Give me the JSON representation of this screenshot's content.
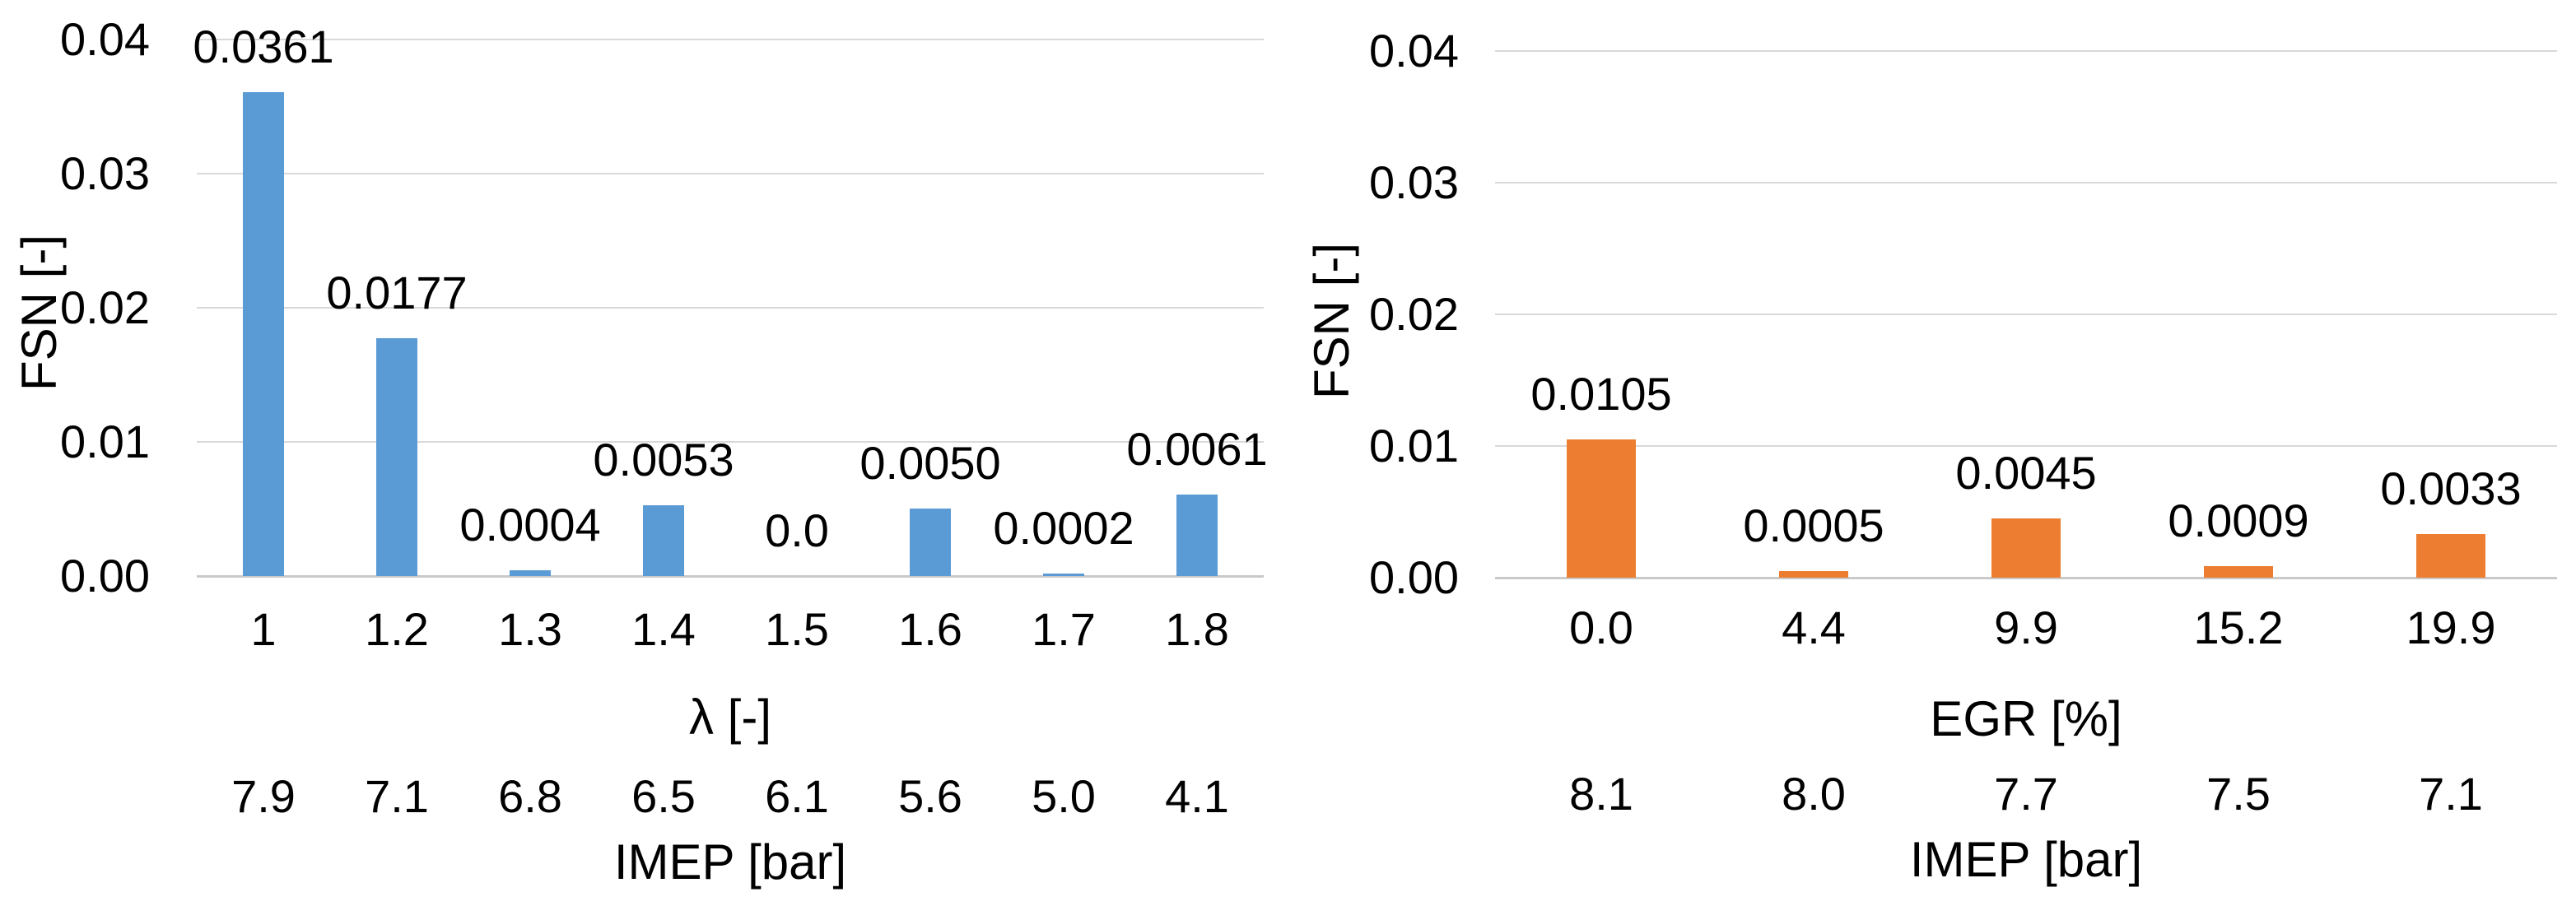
{
  "chart_data": [
    {
      "id": "lambda-sweep",
      "type": "bar",
      "title": "",
      "ylabel": "FSN [-]",
      "xlabel": "λ [-]",
      "xlabel2": "IMEP [bar]",
      "bar_color": "#5B9BD5",
      "ylim": [
        0,
        0.04
      ],
      "grid": true,
      "legend": false,
      "ytick_labels": [
        "0.04",
        "0.03",
        "0.02",
        "0.01",
        "0.00"
      ],
      "categories": [
        "1",
        "1.2",
        "1.3",
        "1.4",
        "1.5",
        "1.6",
        "1.7",
        "1.8"
      ],
      "values": [
        0.0361,
        0.0177,
        0.0004,
        0.0053,
        0.0,
        0.005,
        0.0002,
        0.0061
      ],
      "value_labels": [
        "0.0361",
        "0.0177",
        "0.0004",
        "0.0053",
        "0.0",
        "0.0050",
        "0.0002",
        "0.0061"
      ],
      "imep_values": [
        "7.9",
        "7.1",
        "6.8",
        "6.5",
        "6.1",
        "5.6",
        "5.0",
        "4.1"
      ]
    },
    {
      "id": "egr-sweep",
      "type": "bar",
      "title": "",
      "ylabel": "FSN [-]",
      "xlabel": "EGR [%]",
      "xlabel2": "IMEP [bar]",
      "bar_color": "#ED7D31",
      "ylim": [
        0,
        0.04
      ],
      "grid": true,
      "legend": false,
      "ytick_labels": [
        "0.04",
        "0.03",
        "0.02",
        "0.01",
        "0.00"
      ],
      "categories": [
        "0.0",
        "4.4",
        "9.9",
        "15.2",
        "19.9"
      ],
      "values": [
        0.0105,
        0.0005,
        0.0045,
        0.0009,
        0.0033
      ],
      "value_labels": [
        "0.0105",
        "0.0005",
        "0.0045",
        "0.0009",
        "0.0033"
      ],
      "imep_values": [
        "8.1",
        "8.0",
        "7.7",
        "7.5",
        "7.1"
      ]
    }
  ],
  "colors": {
    "bar_blue": "#5B9BD5",
    "bar_orange": "#ED7D31",
    "gridline": "#d9d9d9",
    "text": "#000000",
    "background": "#ffffff"
  }
}
